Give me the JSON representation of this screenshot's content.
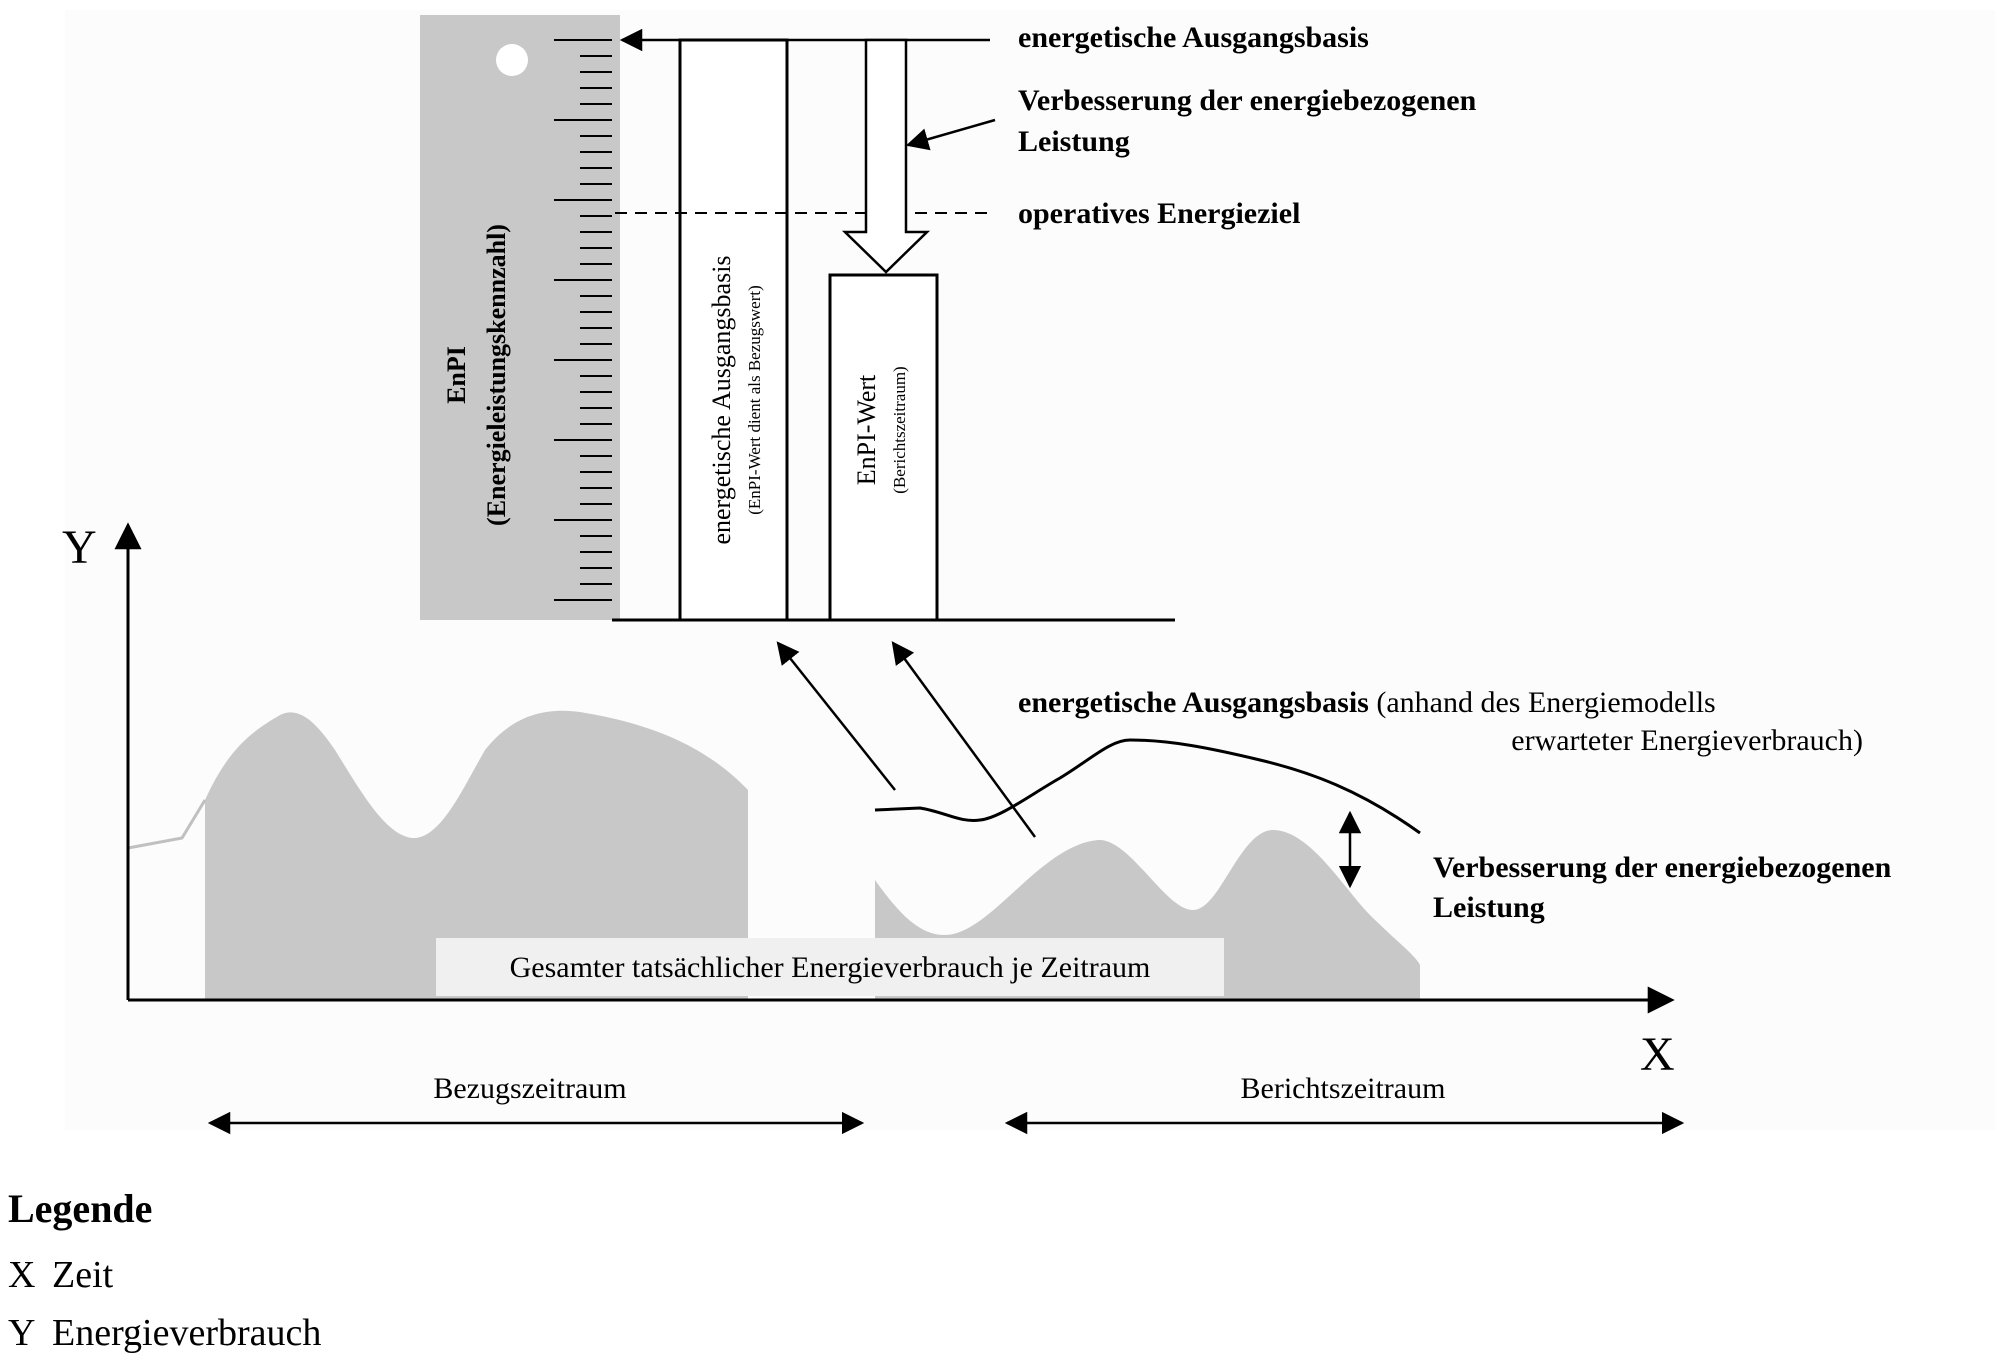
{
  "diagram": {
    "enpi_scale": {
      "label": "EnPI",
      "sublabel": "(Energieleistungskennzahl)"
    },
    "bars": {
      "baseline_title": "energetische Ausgangsbasis",
      "baseline_sub": "(EnPI-Wert dient als Bezugswert)",
      "current_title": "EnPI-Wert",
      "current_sub": "(Berichtszeitraum)"
    },
    "labels": {
      "top_baseline": "energetische Ausgangsbasis",
      "improvement_line1": "Verbesserung der energiebezogenen",
      "improvement_line2": "Leistung",
      "operative_target": "operatives Energieziel",
      "model_bold": "energetische Ausgangsbasis",
      "model_line1_rest": " (anhand des Energiemodells",
      "model_line2": "erwarteter Energieverbrauch)",
      "improvement2_line1": "Verbesserung der energiebezogenen",
      "improvement2_line2": "Leistung",
      "total_consumption": "Gesamter tatsächlicher Energieverbrauch je Zeitraum"
    },
    "axes": {
      "x": "X",
      "y": "Y"
    },
    "periods": {
      "reference": "Bezugszeitraum",
      "reporting": "Berichtszeitraum"
    },
    "colors": {
      "fill": "#c8c8c8",
      "stroke": "#000000"
    }
  },
  "legend": {
    "title": "Legende",
    "items": [
      {
        "key": "X",
        "value": "Zeit"
      },
      {
        "key": "Y",
        "value": "Energieverbrauch"
      }
    ]
  }
}
